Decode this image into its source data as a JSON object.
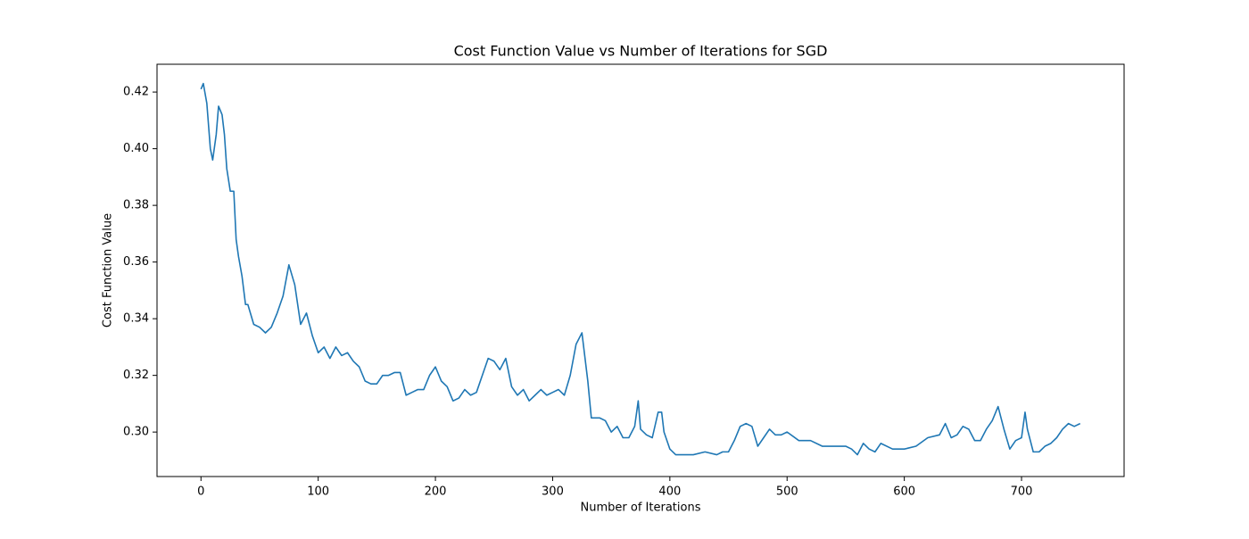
{
  "chart_data": {
    "type": "line",
    "title": "Cost Function Value vs Number of Iterations for SGD",
    "x_label": "Number of Iterations",
    "y_label": "Cost Function Value",
    "xlim": [
      -37.5,
      787.5
    ],
    "ylim": [
      0.2843,
      0.4298
    ],
    "xticks": [
      0,
      100,
      200,
      300,
      400,
      500,
      600,
      700
    ],
    "yticks": [
      {
        "value": 0.3,
        "label": "0.30"
      },
      0.32,
      0.34,
      0.36,
      0.38,
      {
        "value": 0.4,
        "label": "0.40"
      },
      0.42
    ],
    "grid": false,
    "series": [
      {
        "color": "#1f77b4",
        "x": [
          0,
          2,
          5,
          8,
          10,
          13,
          15,
          18,
          20,
          22,
          25,
          28,
          30,
          32,
          35,
          38,
          40,
          45,
          50,
          55,
          60,
          65,
          70,
          75,
          80,
          85,
          90,
          95,
          100,
          105,
          110,
          115,
          120,
          125,
          130,
          135,
          140,
          145,
          150,
          155,
          160,
          165,
          170,
          175,
          180,
          185,
          190,
          195,
          200,
          205,
          210,
          215,
          220,
          225,
          230,
          235,
          240,
          245,
          250,
          255,
          260,
          265,
          270,
          275,
          280,
          285,
          290,
          295,
          300,
          305,
          310,
          315,
          320,
          325,
          330,
          333,
          340,
          345,
          350,
          355,
          360,
          365,
          370,
          373,
          375,
          380,
          385,
          390,
          393,
          395,
          400,
          405,
          410,
          420,
          430,
          440,
          445,
          450,
          455,
          460,
          465,
          470,
          475,
          480,
          485,
          490,
          495,
          500,
          510,
          520,
          530,
          540,
          550,
          555,
          560,
          565,
          570,
          575,
          580,
          590,
          600,
          610,
          620,
          630,
          635,
          640,
          645,
          650,
          655,
          660,
          665,
          670,
          675,
          680,
          685,
          690,
          695,
          700,
          703,
          705,
          710,
          715,
          720,
          725,
          730,
          735,
          740,
          745,
          750
        ],
        "values": [
          0.421,
          0.423,
          0.416,
          0.4,
          0.396,
          0.405,
          0.415,
          0.412,
          0.405,
          0.393,
          0.385,
          0.385,
          0.368,
          0.362,
          0.355,
          0.345,
          0.345,
          0.338,
          0.337,
          0.335,
          0.337,
          0.342,
          0.348,
          0.359,
          0.352,
          0.338,
          0.342,
          0.334,
          0.328,
          0.33,
          0.326,
          0.33,
          0.327,
          0.328,
          0.325,
          0.323,
          0.318,
          0.317,
          0.317,
          0.32,
          0.32,
          0.321,
          0.321,
          0.313,
          0.314,
          0.315,
          0.315,
          0.32,
          0.323,
          0.318,
          0.316,
          0.311,
          0.312,
          0.315,
          0.313,
          0.314,
          0.32,
          0.326,
          0.325,
          0.322,
          0.326,
          0.316,
          0.313,
          0.315,
          0.311,
          0.313,
          0.315,
          0.313,
          0.314,
          0.315,
          0.313,
          0.32,
          0.331,
          0.335,
          0.318,
          0.305,
          0.305,
          0.304,
          0.3,
          0.302,
          0.298,
          0.298,
          0.302,
          0.311,
          0.301,
          0.299,
          0.298,
          0.307,
          0.307,
          0.3,
          0.294,
          0.292,
          0.292,
          0.292,
          0.293,
          0.292,
          0.293,
          0.293,
          0.297,
          0.302,
          0.303,
          0.302,
          0.295,
          0.298,
          0.301,
          0.299,
          0.299,
          0.3,
          0.297,
          0.297,
          0.295,
          0.295,
          0.295,
          0.294,
          0.292,
          0.296,
          0.294,
          0.293,
          0.296,
          0.294,
          0.294,
          0.295,
          0.298,
          0.299,
          0.303,
          0.298,
          0.299,
          0.302,
          0.301,
          0.297,
          0.297,
          0.301,
          0.304,
          0.309,
          0.301,
          0.294,
          0.297,
          0.298,
          0.307,
          0.301,
          0.293,
          0.293,
          0.295,
          0.296,
          0.298,
          0.301,
          0.303,
          0.302,
          0.303
        ]
      }
    ]
  }
}
